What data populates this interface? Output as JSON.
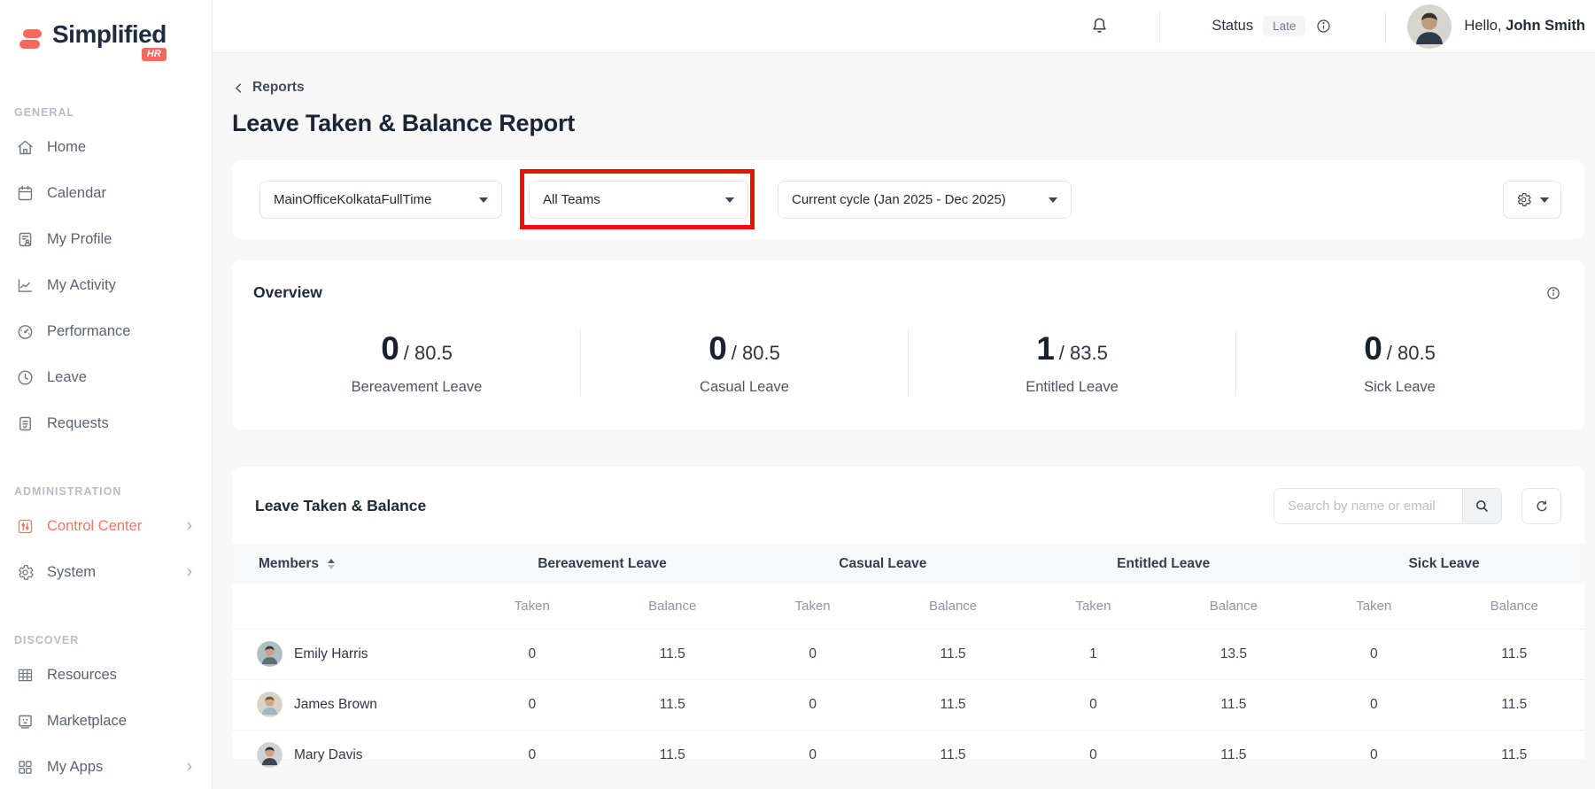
{
  "brand": {
    "name": "Simplified",
    "badge": "HR"
  },
  "topbar": {
    "status_label": "Status",
    "status_value": "Late",
    "greeting_prefix": "Hello, ",
    "user_name": "John Smith"
  },
  "sidebar": {
    "sections": [
      {
        "label": "GENERAL",
        "items": [
          {
            "label": "Home",
            "icon": "home-icon"
          },
          {
            "label": "Calendar",
            "icon": "calendar-icon"
          },
          {
            "label": "My Profile",
            "icon": "profile-document-icon"
          },
          {
            "label": "My Activity",
            "icon": "activity-chart-icon"
          },
          {
            "label": "Performance",
            "icon": "gauge-icon"
          },
          {
            "label": "Leave",
            "icon": "clock-icon"
          },
          {
            "label": "Requests",
            "icon": "document-lines-icon"
          }
        ]
      },
      {
        "label": "ADMINISTRATION",
        "items": [
          {
            "label": "Control Center",
            "icon": "sliders-icon",
            "active": true,
            "expandable": true
          },
          {
            "label": "System",
            "icon": "gear-icon",
            "expandable": true
          }
        ]
      },
      {
        "label": "DISCOVER",
        "items": [
          {
            "label": "Resources",
            "icon": "grid-table-icon"
          },
          {
            "label": "Marketplace",
            "icon": "storefront-screen-icon"
          },
          {
            "label": "My Apps",
            "icon": "apps-grid-icon",
            "expandable": true
          }
        ]
      }
    ]
  },
  "page": {
    "breadcrumb": "Reports",
    "title": "Leave Taken & Balance Report"
  },
  "filters": {
    "department": "MainOfficeKolkataFullTime",
    "team": "All Teams",
    "cycle": "Current cycle (Jan 2025 - Dec 2025)"
  },
  "overview": {
    "title": "Overview",
    "stats": [
      {
        "value": "0",
        "of": "/ 80.5",
        "label": "Bereavement Leave"
      },
      {
        "value": "0",
        "of": "/ 80.5",
        "label": "Casual Leave"
      },
      {
        "value": "1",
        "of": "/ 83.5",
        "label": "Entitled Leave"
      },
      {
        "value": "0",
        "of": "/ 80.5",
        "label": "Sick Leave"
      }
    ]
  },
  "table": {
    "title": "Leave Taken & Balance",
    "search_placeholder": "Search by name or email",
    "members_header": "Members",
    "groups": [
      "Bereavement Leave",
      "Casual Leave",
      "Entitled Leave",
      "Sick Leave"
    ],
    "subheaders": [
      "Taken",
      "Balance"
    ],
    "rows": [
      {
        "name": "Emily Harris",
        "avatar": {
          "bg": "#aebfc2",
          "hair": "#2f3a3d",
          "skin": "#caa184",
          "body": "#5d6f73"
        },
        "values": [
          "0",
          "11.5",
          "0",
          "11.5",
          "1",
          "13.5",
          "0",
          "11.5"
        ]
      },
      {
        "name": "James Brown",
        "avatar": {
          "bg": "#d9d2c6",
          "hair": "#6e553d",
          "skin": "#d4a985",
          "body": "#9fb6c4"
        },
        "values": [
          "0",
          "11.5",
          "0",
          "11.5",
          "0",
          "11.5",
          "0",
          "11.5"
        ]
      },
      {
        "name": "Mary Davis",
        "avatar": {
          "bg": "#cfd3d6",
          "hair": "#33302e",
          "skin": "#d0a482",
          "body": "#3c4450"
        },
        "values": [
          "0",
          "11.5",
          "0",
          "11.5",
          "0",
          "11.5",
          "0",
          "11.5"
        ]
      }
    ]
  },
  "user_avatar": {
    "bg": "#d8d4cf",
    "hair": "#3a3027",
    "skin": "#bd9b7d",
    "body": "#2e3a48"
  },
  "colors": {
    "brand_coral": "#f7695e",
    "active_item": "#f87368",
    "highlight_red": "#e8140c"
  }
}
